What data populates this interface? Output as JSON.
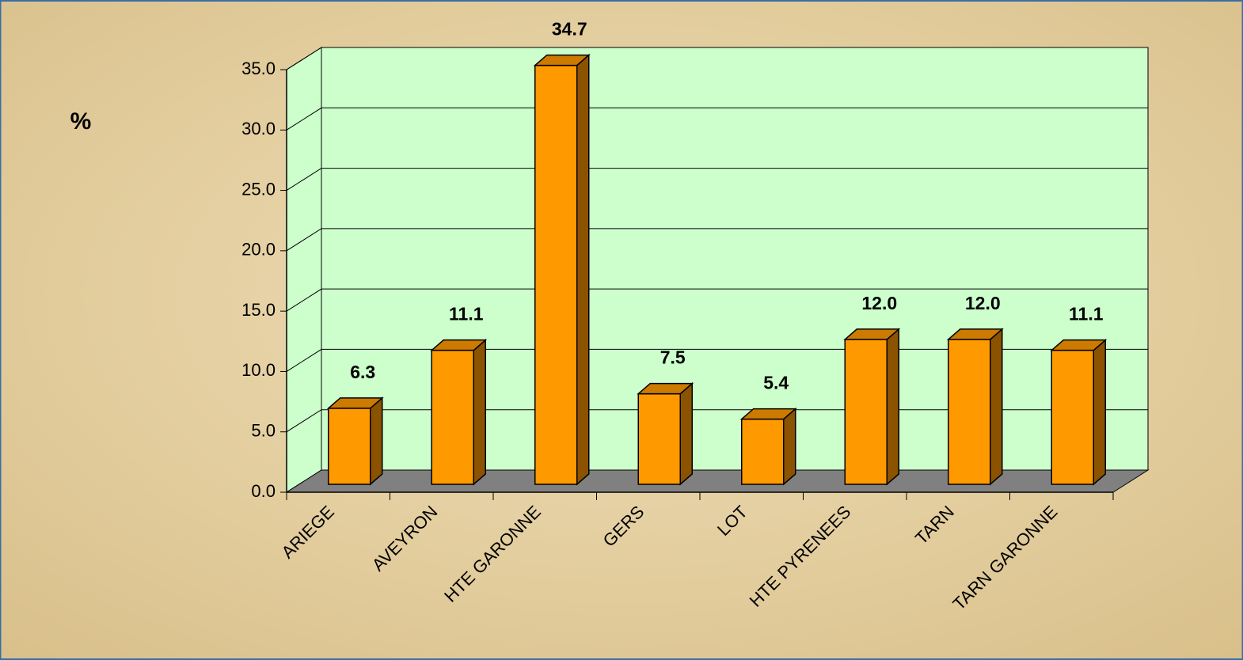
{
  "chart_data": {
    "type": "bar3d",
    "y_axis_label": "%",
    "categories": [
      "ARIEGE",
      "AVEYRON",
      "HTE GARONNE",
      "GERS",
      "LOT",
      "HTE PYRENEES",
      "TARN",
      "TARN GARONNE"
    ],
    "values": [
      6.3,
      11.1,
      34.7,
      7.5,
      5.4,
      12.0,
      12.0,
      11.1
    ],
    "value_labels": [
      "6.3",
      "11.1",
      "34.7",
      "7.5",
      "5.4",
      "12.0",
      "12.0",
      "11.1"
    ],
    "color": "#ff9900",
    "ylim": [
      0,
      35
    ],
    "yticks": [
      {
        "value": 0,
        "label": "0.0"
      },
      {
        "value": 5,
        "label": "5.0"
      },
      {
        "value": 10,
        "label": "10.0"
      },
      {
        "value": 15,
        "label": "15.0"
      },
      {
        "value": 20,
        "label": "20.0"
      },
      {
        "value": 25,
        "label": "25.0"
      },
      {
        "value": 30,
        "label": "30.0"
      },
      {
        "value": 35,
        "label": "35.0"
      }
    ],
    "grid": true
  }
}
